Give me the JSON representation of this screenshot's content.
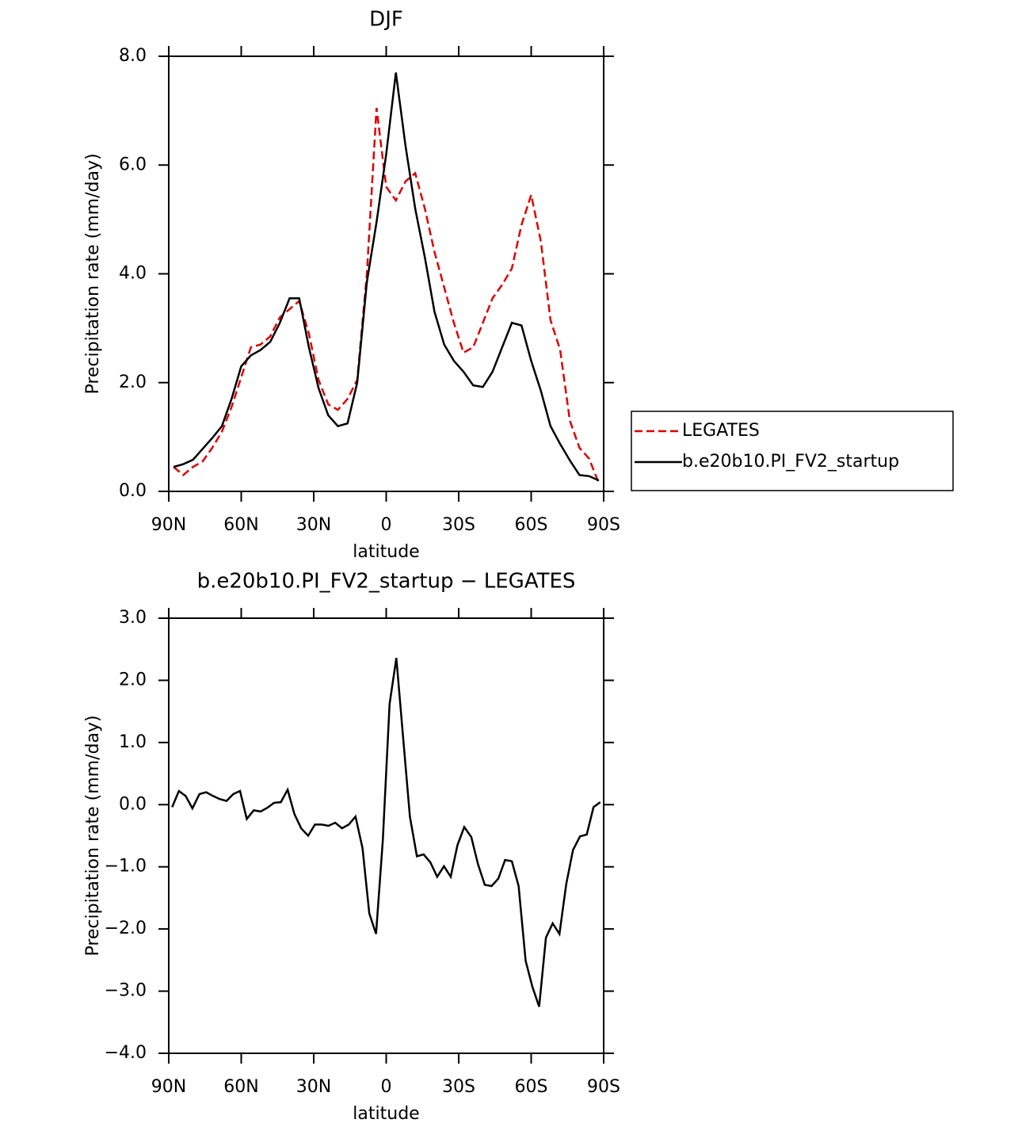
{
  "chart_data": [
    {
      "type": "line",
      "title": "DJF",
      "xlabel": "latitude",
      "ylabel": "Precipitation rate (mm/day)",
      "x": [
        88,
        84,
        80,
        76,
        72,
        68,
        64,
        60,
        56,
        52,
        48,
        44,
        40,
        36,
        32,
        28,
        24,
        20,
        16,
        12,
        8,
        4,
        0,
        -4,
        -8,
        -12,
        -16,
        -20,
        -24,
        -28,
        -32,
        -36,
        -40,
        -44,
        -48,
        -52,
        -56,
        -60,
        -64,
        -68,
        -72,
        -76,
        -80,
        -84,
        -88
      ],
      "series": [
        {
          "name": "LEGATES",
          "color": "#e00000",
          "line_style": "dashed",
          "values": [
            0.45,
            0.3,
            0.45,
            0.55,
            0.8,
            1.1,
            1.55,
            2.1,
            2.65,
            2.7,
            2.85,
            3.2,
            3.35,
            3.5,
            2.9,
            2.05,
            1.6,
            1.5,
            1.7,
            2.05,
            4.0,
            7.05,
            5.6,
            5.35,
            5.7,
            5.85,
            5.2,
            4.4,
            3.75,
            3.1,
            2.55,
            2.65,
            3.1,
            3.55,
            3.8,
            4.1,
            4.9,
            5.45,
            4.6,
            3.15,
            2.6,
            1.3,
            0.8,
            0.6,
            0.15
          ]
        },
        {
          "name": "b.e20b10.PI_FV2_startup",
          "color": "#000000",
          "line_style": "solid",
          "values": [
            0.45,
            0.5,
            0.58,
            0.78,
            0.98,
            1.2,
            1.7,
            2.3,
            2.5,
            2.6,
            2.75,
            3.1,
            3.55,
            3.55,
            2.65,
            1.9,
            1.4,
            1.2,
            1.25,
            2.0,
            3.85,
            4.95,
            6.2,
            7.7,
            6.35,
            5.2,
            4.3,
            3.3,
            2.7,
            2.4,
            2.2,
            1.95,
            1.92,
            2.2,
            2.65,
            3.1,
            3.05,
            2.4,
            1.85,
            1.2,
            0.87,
            0.57,
            0.3,
            0.28,
            0.2
          ]
        }
      ],
      "xlim": [
        90,
        -90
      ],
      "xticks": [
        {
          "value": 90,
          "label": "90N"
        },
        {
          "value": 60,
          "label": "60N"
        },
        {
          "value": 30,
          "label": "30N"
        },
        0,
        {
          "value": -30,
          "label": "30S"
        },
        {
          "value": -60,
          "label": "60S"
        },
        {
          "value": -90,
          "label": "90S"
        }
      ],
      "ylim": [
        0,
        8
      ],
      "yticks": [
        {
          "value": 0,
          "label": "0.0"
        },
        {
          "value": 2,
          "label": "2.0"
        },
        {
          "value": 4,
          "label": "4.0"
        },
        {
          "value": 6,
          "label": "6.0"
        },
        {
          "value": 8,
          "label": "8.0"
        }
      ],
      "legend": "outside-right"
    },
    {
      "type": "line",
      "title": "b.e20b10.PI_FV2_startup − LEGATES",
      "xlabel": "latitude",
      "ylabel": "Precipitation rate (mm/day)",
      "x": [
        88.6,
        85.8,
        83.0,
        80.2,
        77.3,
        74.5,
        71.7,
        68.9,
        66.1,
        63.3,
        60.5,
        57.7,
        54.8,
        52.0,
        49.2,
        46.4,
        43.6,
        40.8,
        38.0,
        35.2,
        32.3,
        29.5,
        26.7,
        23.9,
        21.1,
        18.3,
        15.5,
        12.7,
        9.8,
        7.0,
        4.2,
        1.4,
        -1.4,
        -4.2,
        -7.0,
        -9.8,
        -12.7,
        -15.5,
        -18.3,
        -21.1,
        -23.9,
        -26.7,
        -29.5,
        -32.3,
        -35.2,
        -38.0,
        -40.8,
        -43.6,
        -46.4,
        -49.2,
        -52.0,
        -54.8,
        -57.7,
        -60.5,
        -63.3,
        -66.1,
        -68.9,
        -71.7,
        -74.5,
        -77.3,
        -80.2,
        -83.0,
        -85.8,
        -88.6
      ],
      "series": [
        {
          "color": "#000000",
          "line_style": "solid",
          "values": [
            -0.04,
            0.22,
            0.14,
            -0.06,
            0.17,
            0.2,
            0.14,
            0.09,
            0.06,
            0.17,
            0.22,
            -0.23,
            -0.09,
            -0.11,
            -0.05,
            0.03,
            0.04,
            0.24,
            -0.15,
            -0.38,
            -0.5,
            -0.32,
            -0.32,
            -0.34,
            -0.29,
            -0.38,
            -0.32,
            -0.19,
            -0.7,
            -1.75,
            -2.08,
            -0.57,
            1.62,
            2.36,
            1.08,
            -0.19,
            -0.83,
            -0.8,
            -0.93,
            -1.16,
            -0.99,
            -1.16,
            -0.65,
            -0.36,
            -0.52,
            -0.96,
            -1.29,
            -1.31,
            -1.19,
            -0.89,
            -0.91,
            -1.31,
            -2.51,
            -2.93,
            -3.25,
            -2.14,
            -1.91,
            -2.08,
            -1.28,
            -0.73,
            -0.51,
            -0.48,
            -0.04,
            0.04
          ]
        }
      ],
      "xlim": [
        90,
        -90
      ],
      "xticks": [
        {
          "value": 90,
          "label": "90N"
        },
        {
          "value": 60,
          "label": "60N"
        },
        {
          "value": 30,
          "label": "30N"
        },
        0,
        {
          "value": -30,
          "label": "30S"
        },
        {
          "value": -60,
          "label": "60S"
        },
        {
          "value": -90,
          "label": "90S"
        }
      ],
      "ylim": [
        -4,
        3
      ],
      "yticks": [
        {
          "value": -4,
          "label": "−4.0"
        },
        {
          "value": -3,
          "label": "−3.0"
        },
        {
          "value": -2,
          "label": "−2.0"
        },
        {
          "value": -1,
          "label": "−1.0"
        },
        {
          "value": 0,
          "label": "0.0"
        },
        {
          "value": 1,
          "label": "1.0"
        },
        {
          "value": 2,
          "label": "2.0"
        },
        {
          "value": 3,
          "label": "3.0"
        }
      ]
    }
  ]
}
